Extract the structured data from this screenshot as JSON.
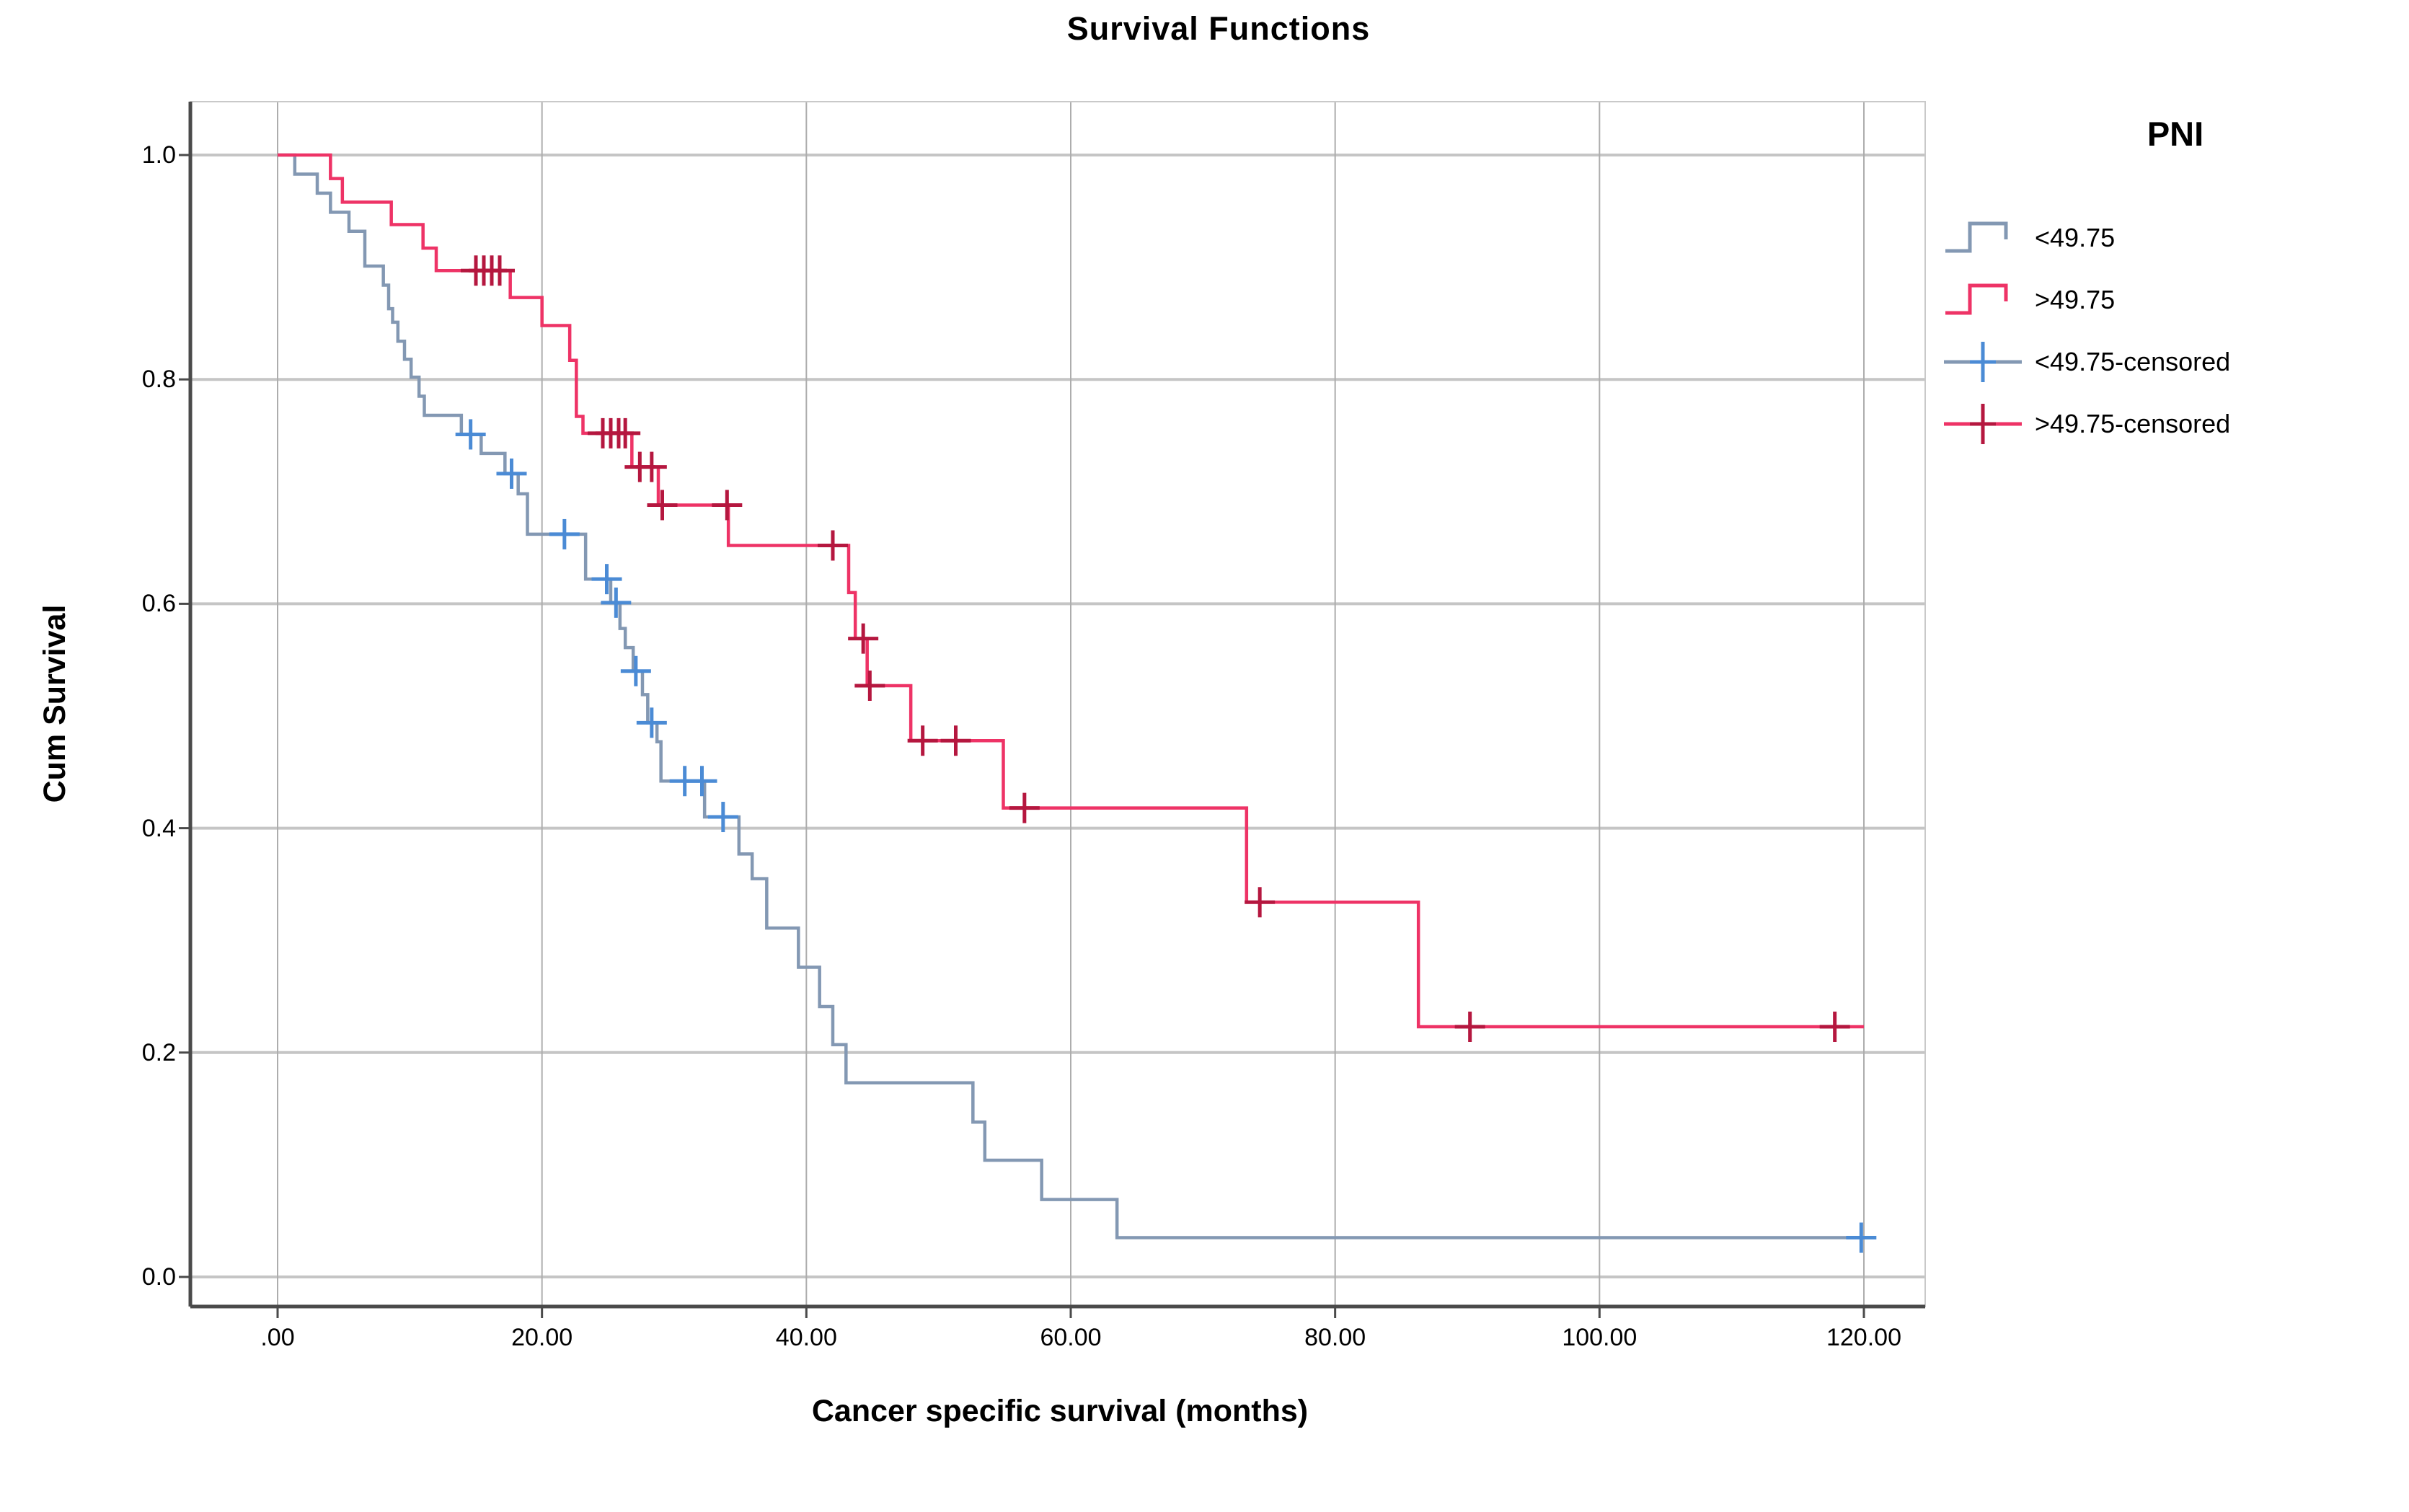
{
  "title": "Survival Functions",
  "axes": {
    "x_label": "Cancer specific survival (months)",
    "y_label": "Cum Survival",
    "x_ticks": [
      {
        "v": 0,
        "label": ".00"
      },
      {
        "v": 20,
        "label": "20.00"
      },
      {
        "v": 40,
        "label": "40.00"
      },
      {
        "v": 60,
        "label": "60.00"
      },
      {
        "v": 80,
        "label": "80.00"
      },
      {
        "v": 100,
        "label": "100.00"
      },
      {
        "v": 120,
        "label": "120.00"
      }
    ],
    "y_ticks": [
      {
        "v": 1.0,
        "label": "1.0"
      },
      {
        "v": 0.8,
        "label": "0.8"
      },
      {
        "v": 0.6,
        "label": "0.6"
      },
      {
        "v": 0.4,
        "label": "0.4"
      },
      {
        "v": 0.2,
        "label": "0.2"
      },
      {
        "v": 0.0,
        "label": "0.0"
      }
    ]
  },
  "legend": {
    "title": "PNI",
    "items": [
      {
        "label": "<49.75",
        "type": "step",
        "color": "#8398B3",
        "accent": "#8398B3"
      },
      {
        "label": ">49.75",
        "type": "step",
        "color": "#EE3366",
        "accent": "#EE3366"
      },
      {
        "label": "<49.75-censored",
        "type": "censor",
        "color": "#8398B3",
        "accent": "#4B8BD5"
      },
      {
        "label": ">49.75-censored",
        "type": "censor",
        "color": "#EE3366",
        "accent": "#B5173F"
      }
    ]
  },
  "colors": {
    "background": "#FFFFFF",
    "grid_horizontal": "#C5C5C5",
    "grid_vertical": "#ADADAD",
    "frame": "#C9C9C9",
    "spine": "#4A4A4A",
    "text": "#000000",
    "series_lt": "#8398B3",
    "series_lt_censor": "#4B8BD5",
    "series_gt": "#EE3366",
    "series_gt_censor": "#B5173F"
  },
  "chart_data": {
    "type": "line",
    "subtype": "kaplan-meier-step",
    "title": "Survival Functions",
    "xlabel": "Cancer specific survival (months)",
    "ylabel": "Cum Survival",
    "xlim": [
      0,
      120
    ],
    "ylim": [
      0.0,
      1.0
    ],
    "grid": true,
    "legend_position": "right",
    "legend_title": "PNI",
    "x_end": 120,
    "series": [
      {
        "name": "<49.75",
        "color": "#8398B3",
        "censor_color": "#4B8BD5",
        "steps": [
          [
            0,
            1.0
          ],
          [
            1.3,
            0.983
          ],
          [
            3.0,
            0.966
          ],
          [
            4.0,
            0.949
          ],
          [
            5.4,
            0.932
          ],
          [
            6.6,
            0.901
          ],
          [
            8.0,
            0.884
          ],
          [
            8.4,
            0.863
          ],
          [
            8.7,
            0.851
          ],
          [
            9.1,
            0.834
          ],
          [
            9.6,
            0.818
          ],
          [
            10.1,
            0.802
          ],
          [
            10.7,
            0.785
          ],
          [
            11.1,
            0.768
          ],
          [
            13.9,
            0.751
          ],
          [
            15.4,
            0.734
          ],
          [
            17.2,
            0.716
          ],
          [
            18.2,
            0.698
          ],
          [
            18.9,
            0.662
          ],
          [
            23.3,
            0.622
          ],
          [
            25.2,
            0.601
          ],
          [
            25.9,
            0.578
          ],
          [
            26.3,
            0.561
          ],
          [
            26.9,
            0.54
          ],
          [
            27.6,
            0.519
          ],
          [
            28.0,
            0.494
          ],
          [
            28.7,
            0.477
          ],
          [
            29.0,
            0.442
          ],
          [
            32.3,
            0.41
          ],
          [
            34.9,
            0.377
          ],
          [
            35.9,
            0.355
          ],
          [
            37.0,
            0.311
          ],
          [
            39.4,
            0.276
          ],
          [
            41.0,
            0.241
          ],
          [
            42.0,
            0.207
          ],
          [
            43.0,
            0.173
          ],
          [
            52.6,
            0.138
          ],
          [
            53.5,
            0.104
          ],
          [
            57.8,
            0.069
          ],
          [
            63.5,
            0.035
          ]
        ],
        "censored": [
          [
            14.6,
            0.751
          ],
          [
            17.7,
            0.716
          ],
          [
            21.7,
            0.662
          ],
          [
            24.9,
            0.622
          ],
          [
            25.6,
            0.601
          ],
          [
            27.1,
            0.54
          ],
          [
            28.3,
            0.494
          ],
          [
            30.8,
            0.442
          ],
          [
            32.1,
            0.442
          ],
          [
            33.7,
            0.41
          ],
          [
            119.8,
            0.035
          ]
        ]
      },
      {
        "name": ">49.75",
        "color": "#EE3366",
        "censor_color": "#B5173F",
        "steps": [
          [
            0,
            1.0
          ],
          [
            4.0,
            0.979
          ],
          [
            4.9,
            0.958
          ],
          [
            8.6,
            0.938
          ],
          [
            11.0,
            0.917
          ],
          [
            12.0,
            0.897
          ],
          [
            17.6,
            0.873
          ],
          [
            20.0,
            0.848
          ],
          [
            22.1,
            0.817
          ],
          [
            22.6,
            0.767
          ],
          [
            23.1,
            0.752
          ],
          [
            26.8,
            0.722
          ],
          [
            28.8,
            0.688
          ],
          [
            34.1,
            0.652
          ],
          [
            43.2,
            0.61
          ],
          [
            43.7,
            0.569
          ],
          [
            44.6,
            0.527
          ],
          [
            47.9,
            0.478
          ],
          [
            54.9,
            0.418
          ],
          [
            73.3,
            0.334
          ],
          [
            86.3,
            0.223
          ]
        ],
        "censored": [
          [
            15.0,
            0.897
          ],
          [
            15.6,
            0.897
          ],
          [
            16.2,
            0.897
          ],
          [
            16.8,
            0.897
          ],
          [
            24.6,
            0.752
          ],
          [
            25.2,
            0.752
          ],
          [
            25.8,
            0.752
          ],
          [
            26.3,
            0.752
          ],
          [
            27.4,
            0.722
          ],
          [
            28.3,
            0.722
          ],
          [
            29.1,
            0.688
          ],
          [
            34.0,
            0.688
          ],
          [
            42.0,
            0.652
          ],
          [
            44.3,
            0.569
          ],
          [
            44.8,
            0.527
          ],
          [
            48.8,
            0.478
          ],
          [
            51.3,
            0.478
          ],
          [
            56.5,
            0.418
          ],
          [
            74.3,
            0.334
          ],
          [
            90.2,
            0.223
          ],
          [
            117.8,
            0.223
          ]
        ]
      }
    ]
  }
}
